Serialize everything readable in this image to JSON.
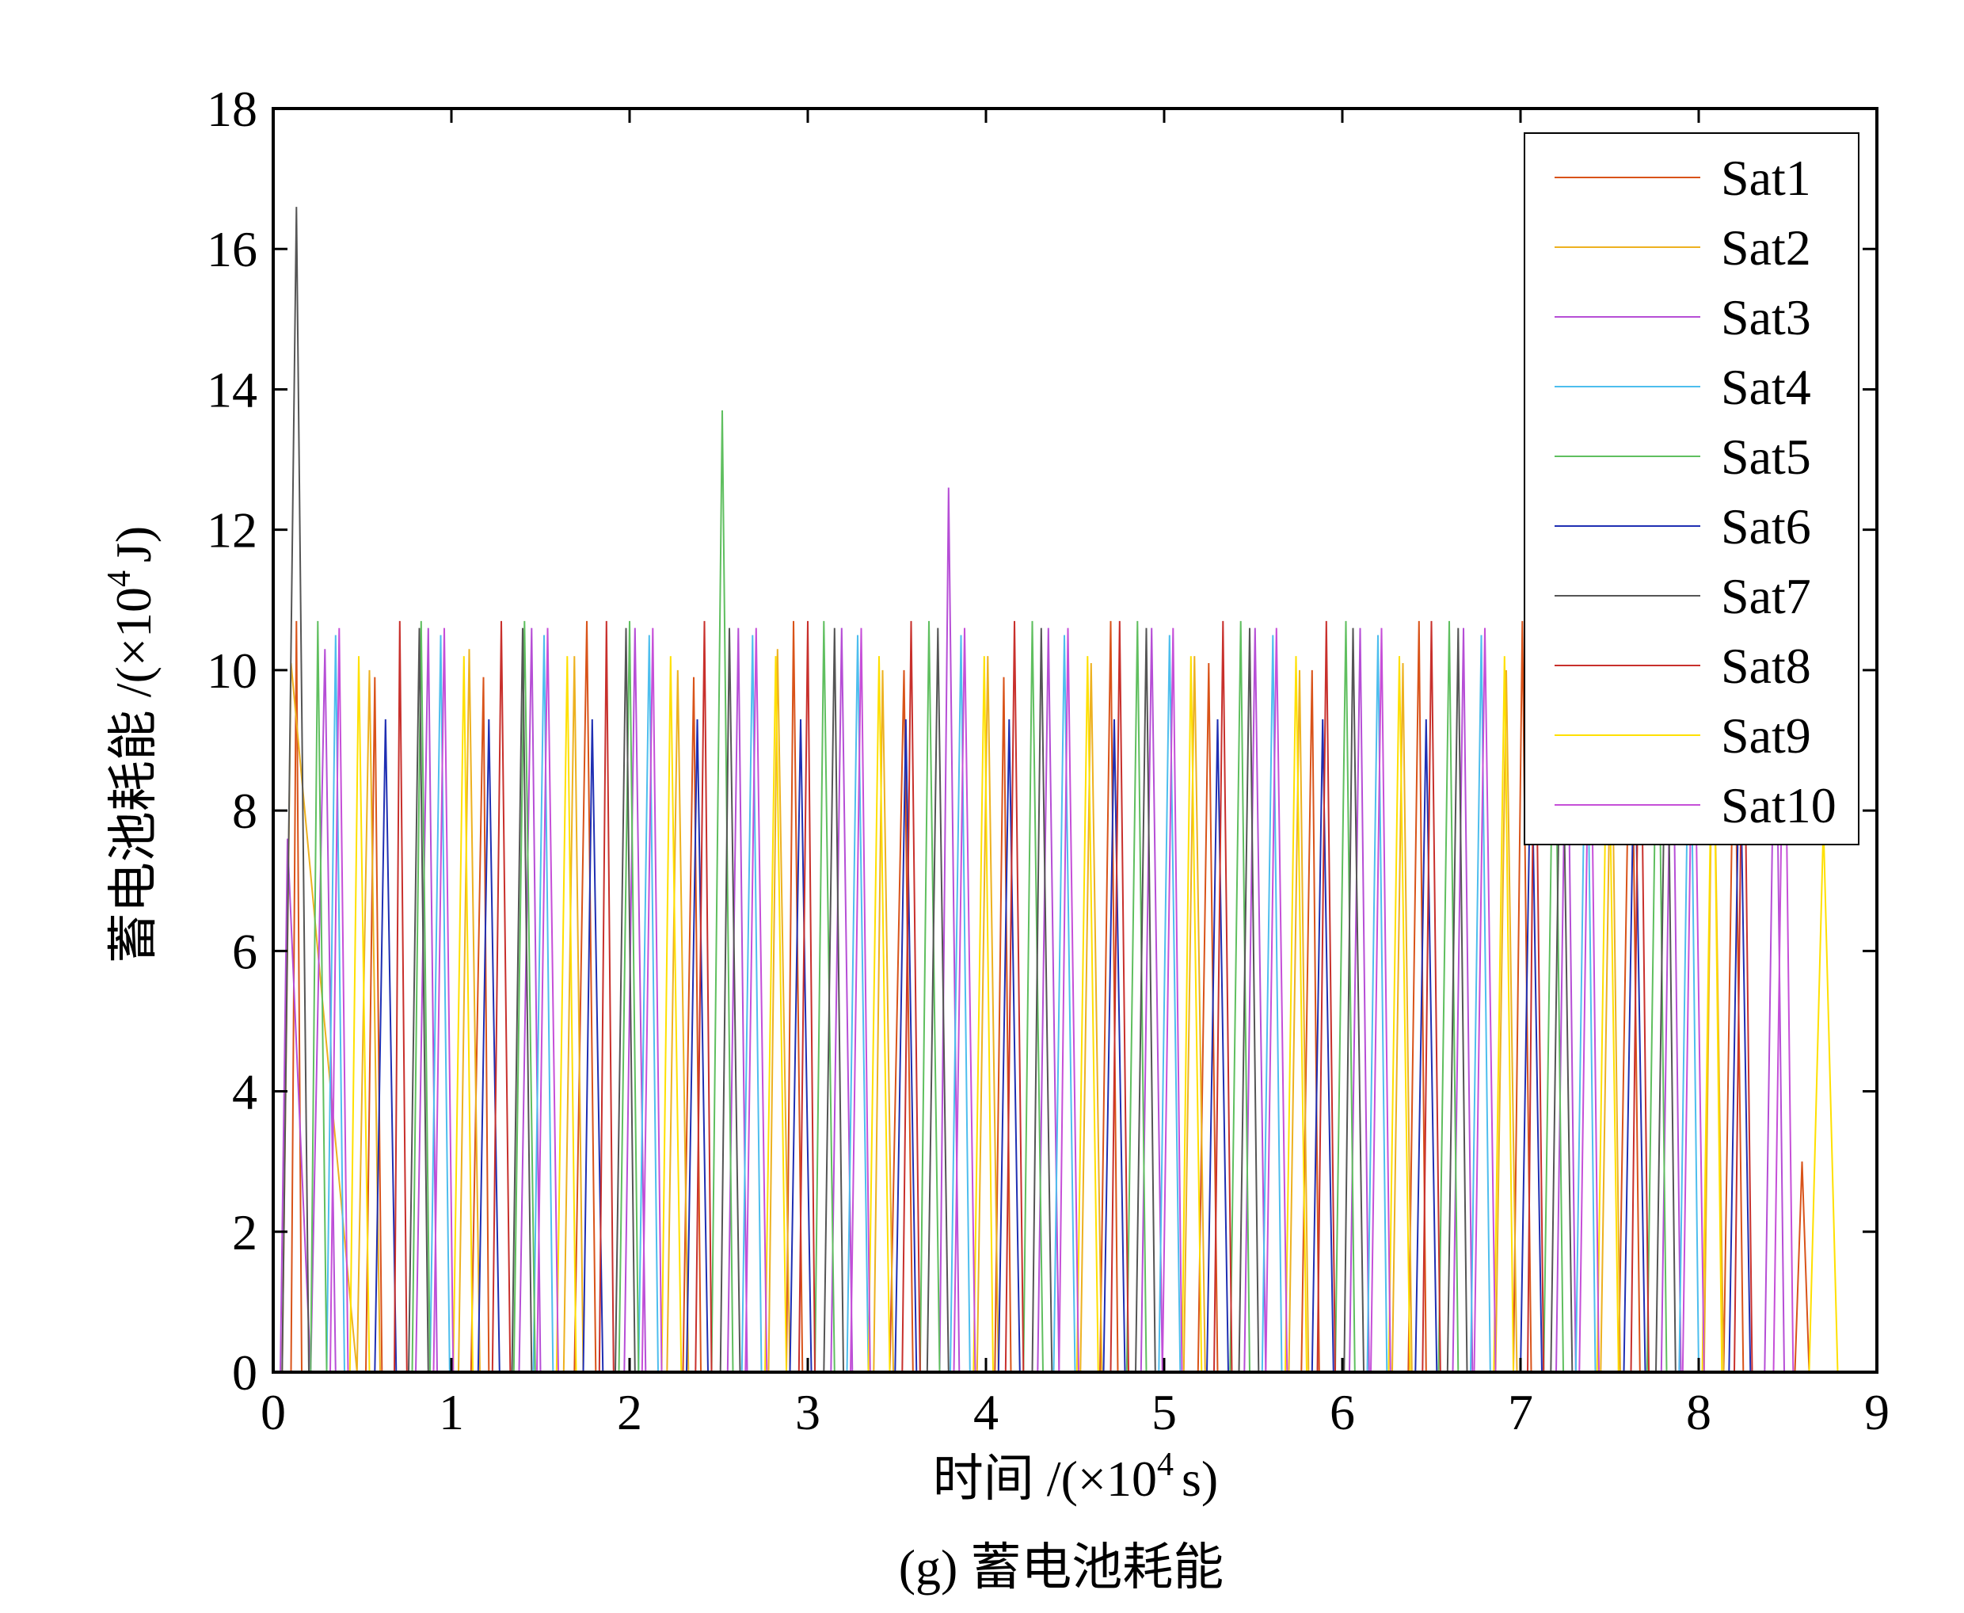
{
  "chart_data": {
    "type": "line",
    "caption": "(g) 蓄电池耗能",
    "xlabel": "时间 /(×10⁴ s)",
    "xlabel_main": "时间 /(×10",
    "xlabel_sup": "4",
    "xlabel_tail": "s)",
    "ylabel_main": "蓄电池耗能 /(×10",
    "ylabel_sup": "4",
    "ylabel_tail": "J)",
    "xlim": [
      0,
      9
    ],
    "ylim": [
      0,
      18
    ],
    "xticks": [
      "0",
      "1",
      "2",
      "3",
      "4",
      "5",
      "6",
      "7",
      "8",
      "9"
    ],
    "yticks": [
      "0",
      "2",
      "4",
      "6",
      "8",
      "10",
      "12",
      "14",
      "16",
      "18"
    ],
    "grid": false,
    "legend_position": "top-right",
    "series": [
      {
        "name": "Sat1",
        "color": "#d95319",
        "x": [
          0,
          0.1,
          0.13,
          0.16,
          0.52,
          0.57,
          0.61,
          1.11,
          1.18,
          1.21,
          1.69,
          1.76,
          1.81,
          2.3,
          2.36,
          2.4,
          2.88,
          2.92,
          2.97,
          3.46,
          3.54,
          3.59,
          4.05,
          4.1,
          4.14,
          4.64,
          4.7,
          4.74,
          5.19,
          5.25,
          5.3,
          5.77,
          5.83,
          5.87,
          6.37,
          6.43,
          6.47,
          6.96,
          7.01,
          7.06,
          7.55,
          7.62,
          7.67,
          8.14,
          8.2,
          8.25,
          8.54,
          8.58,
          8.62
        ],
        "y": [
          0,
          0,
          10.7,
          0,
          0,
          9.9,
          0,
          0,
          9.9,
          0,
          0,
          10.7,
          0,
          0,
          9.9,
          0,
          0,
          10.7,
          0,
          0,
          10.0,
          0,
          0,
          9.9,
          0,
          0,
          10.7,
          0,
          0,
          10.1,
          0,
          0,
          10.0,
          0,
          0,
          10.7,
          0,
          0,
          10.7,
          0,
          0,
          10.7,
          0,
          0,
          10.0,
          0,
          0,
          3.0,
          0
        ]
      },
      {
        "name": "Sat2",
        "color": "#edb120",
        "x": [
          0,
          0.05,
          0.1,
          0.47,
          0.54,
          0.6,
          1.04,
          1.1,
          1.16,
          1.63,
          1.69,
          1.74,
          2.21,
          2.27,
          2.33,
          2.78,
          2.83,
          2.9,
          3.37,
          3.42,
          3.48,
          3.95,
          4.01,
          4.07,
          4.53,
          4.59,
          4.65,
          5.11,
          5.17,
          5.23,
          5.7,
          5.76,
          5.81,
          6.28,
          6.34,
          6.39,
          6.86,
          6.92,
          6.98,
          7.45,
          7.51,
          7.56,
          8.03,
          8.08,
          8.14
        ],
        "y": [
          0,
          0,
          10.1,
          0,
          10.0,
          0,
          0,
          10.3,
          0,
          0,
          10.2,
          0,
          0,
          10.0,
          0,
          0,
          10.3,
          0,
          0,
          10.0,
          0,
          0,
          10.2,
          0,
          0,
          10.1,
          0,
          0,
          10.2,
          0,
          0,
          10.0,
          0,
          0,
          10.1,
          0,
          0,
          10.0,
          0,
          0,
          9.8,
          0,
          0,
          10.0,
          0
        ]
      },
      {
        "name": "Sat3",
        "color": "#b64ed6",
        "x": [
          0,
          0.04,
          0.08,
          0.21,
          0.29,
          0.35,
          0.8,
          0.87,
          0.92,
          1.38,
          1.45,
          1.5,
          1.97,
          2.03,
          2.09,
          2.55,
          2.61,
          2.66,
          3.13,
          3.19,
          3.25,
          3.74,
          3.79,
          3.85,
          4.29,
          4.35,
          4.41,
          4.87,
          4.93,
          4.99,
          5.45,
          5.51,
          5.57,
          6.04,
          6.1,
          6.15,
          6.62,
          6.68,
          6.73,
          7.2,
          7.26,
          7.31,
          7.79,
          7.85,
          7.9,
          8.37,
          8.43,
          8.48
        ],
        "y": [
          0,
          0,
          7.6,
          0,
          10.3,
          0,
          0,
          10.6,
          0,
          0,
          10.6,
          0,
          0,
          10.6,
          0,
          0,
          10.6,
          0,
          0,
          10.6,
          0,
          0,
          12.6,
          0,
          0,
          10.6,
          0,
          0,
          10.6,
          0,
          0,
          10.6,
          0,
          0,
          10.6,
          0,
          0,
          10.6,
          0,
          0,
          10.6,
          0,
          0,
          10.6,
          0,
          0,
          10.6,
          0
        ]
      },
      {
        "name": "Sat4",
        "color": "#4dbeee",
        "x": [
          0.3,
          0.35,
          0.4,
          0.88,
          0.94,
          0.99,
          1.46,
          1.52,
          1.57,
          2.05,
          2.11,
          2.16,
          2.63,
          2.69,
          2.74,
          3.22,
          3.28,
          3.34,
          3.8,
          3.86,
          3.91,
          4.38,
          4.44,
          4.5,
          4.97,
          5.03,
          5.09,
          5.55,
          5.61,
          5.66,
          6.14,
          6.2,
          6.25,
          6.72,
          6.78,
          6.83,
          7.31,
          7.37,
          7.42,
          7.89,
          7.95,
          8.0
        ],
        "y": [
          0,
          10.5,
          0,
          0,
          10.5,
          0,
          0,
          10.5,
          0,
          0,
          10.5,
          0,
          0,
          10.5,
          0,
          0,
          10.5,
          0,
          0,
          10.5,
          0,
          0,
          10.5,
          0,
          0,
          10.5,
          0,
          0,
          10.5,
          0,
          0,
          10.5,
          0,
          0,
          10.5,
          0,
          0,
          10.5,
          0,
          0,
          10.5,
          0
        ]
      },
      {
        "name": "Sat5",
        "color": "#5fbf5f",
        "x": [
          0.21,
          0.25,
          0.3,
          0.78,
          0.83,
          0.88,
          1.35,
          1.41,
          1.47,
          1.94,
          2.0,
          2.05,
          2.46,
          2.52,
          2.58,
          3.04,
          3.09,
          3.15,
          3.63,
          3.68,
          3.74,
          4.21,
          4.26,
          4.32,
          4.79,
          4.85,
          4.9,
          5.37,
          5.43,
          5.48,
          5.96,
          6.02,
          6.07,
          6.54,
          6.6,
          6.65,
          7.13,
          7.19,
          7.24,
          7.71,
          7.77,
          7.82
        ],
        "y": [
          0,
          10.7,
          0,
          0,
          10.7,
          0,
          0,
          10.7,
          0,
          0,
          10.7,
          0,
          0,
          13.7,
          0,
          0,
          10.7,
          0,
          0,
          10.7,
          0,
          0,
          10.7,
          0,
          0,
          10.7,
          0,
          0,
          10.7,
          0,
          0,
          10.7,
          0,
          0,
          10.7,
          0,
          0,
          10.7,
          0,
          0,
          10.7,
          0
        ]
      },
      {
        "name": "Sat6",
        "color": "#1f2fb3",
        "x": [
          0.57,
          0.63,
          0.69,
          1.15,
          1.21,
          1.27,
          1.74,
          1.79,
          1.85,
          2.32,
          2.38,
          2.44,
          2.9,
          2.96,
          3.02,
          3.49,
          3.55,
          3.61,
          4.07,
          4.13,
          4.19,
          4.66,
          4.72,
          4.78,
          5.24,
          5.3,
          5.36,
          5.83,
          5.89,
          5.95,
          6.41,
          6.47,
          6.53,
          7.0,
          7.06,
          7.12,
          7.58,
          7.64,
          7.7,
          8.17,
          8.23,
          8.29
        ],
        "y": [
          0,
          9.3,
          0,
          0,
          9.3,
          0,
          0,
          9.3,
          0,
          0,
          9.3,
          0,
          0,
          9.3,
          0,
          0,
          9.3,
          0,
          0,
          9.3,
          0,
          0,
          9.3,
          0,
          0,
          9.3,
          0,
          0,
          9.3,
          0,
          0,
          9.3,
          0,
          0,
          9.3,
          0,
          0,
          9.3,
          0,
          0,
          9.3,
          0
        ]
      },
      {
        "name": "Sat7",
        "color": "#555555",
        "x": [
          0.05,
          0.13,
          0.2,
          0.76,
          0.82,
          0.87,
          1.34,
          1.4,
          1.45,
          1.92,
          1.98,
          2.03,
          2.51,
          2.56,
          2.62,
          3.09,
          3.15,
          3.2,
          3.67,
          3.73,
          3.79,
          4.26,
          4.31,
          4.37,
          4.84,
          4.9,
          4.95,
          5.42,
          5.48,
          5.53,
          6.01,
          6.06,
          6.12,
          6.59,
          6.65,
          6.7,
          7.17,
          7.23,
          7.29,
          7.76,
          7.82,
          7.87
        ],
        "y": [
          0,
          16.6,
          0,
          0,
          10.6,
          0,
          0,
          10.6,
          0,
          0,
          10.6,
          0,
          0,
          10.6,
          0,
          0,
          10.6,
          0,
          0,
          10.6,
          0,
          0,
          10.6,
          0,
          0,
          10.6,
          0,
          0,
          10.6,
          0,
          0,
          10.6,
          0,
          0,
          10.6,
          0,
          0,
          10.6,
          0,
          0,
          10.6,
          0
        ]
      },
      {
        "name": "Sat8",
        "color": "#c8302c",
        "x": [
          0.68,
          0.71,
          0.75,
          1.23,
          1.28,
          1.33,
          1.83,
          1.87,
          1.91,
          2.37,
          2.42,
          2.46,
          2.95,
          3.0,
          3.04,
          3.53,
          3.58,
          3.63,
          4.11,
          4.16,
          4.21,
          4.7,
          4.75,
          4.8,
          5.28,
          5.33,
          5.38,
          5.86,
          5.91,
          5.96,
          6.45,
          6.5,
          6.55,
          7.04,
          7.08,
          7.13,
          7.62,
          7.67,
          7.72,
          8.2,
          8.25,
          8.3
        ],
        "y": [
          0,
          10.7,
          0,
          0,
          10.7,
          0,
          0,
          10.7,
          0,
          0,
          10.7,
          0,
          0,
          10.7,
          0,
          0,
          10.7,
          0,
          0,
          10.7,
          0,
          0,
          10.7,
          0,
          0,
          10.7,
          0,
          0,
          10.7,
          0,
          0,
          10.7,
          0,
          0,
          10.7,
          0,
          0,
          10.7,
          0,
          0,
          10.7,
          0
        ]
      },
      {
        "name": "Sat9",
        "color": "#ffe000",
        "x": [
          0.43,
          0.48,
          0.54,
          1.01,
          1.07,
          1.12,
          1.59,
          1.65,
          1.7,
          2.18,
          2.23,
          2.29,
          2.76,
          2.82,
          2.88,
          3.34,
          3.4,
          3.46,
          3.93,
          3.99,
          4.04,
          4.51,
          4.57,
          4.63,
          5.1,
          5.15,
          5.21,
          5.68,
          5.74,
          5.8,
          6.26,
          6.32,
          6.38,
          6.85,
          6.91,
          6.96,
          7.43,
          7.49,
          7.55,
          8.02,
          8.08,
          8.13,
          8.62,
          8.7,
          8.78
        ],
        "y": [
          0,
          10.2,
          0,
          0,
          10.2,
          0,
          0,
          10.2,
          0,
          0,
          10.2,
          0,
          0,
          10.2,
          0,
          0,
          10.2,
          0,
          0,
          10.2,
          0,
          0,
          10.2,
          0,
          0,
          10.2,
          0,
          0,
          10.2,
          0,
          0,
          10.2,
          0,
          0,
          10.2,
          0,
          0,
          10.2,
          0,
          0,
          10.2,
          0,
          0,
          7.8,
          0
        ]
      },
      {
        "name": "Sat10",
        "color": "#c64fd8",
        "x": [
          0.32,
          0.37,
          0.42,
          0.9,
          0.96,
          1.01,
          1.48,
          1.54,
          1.6,
          2.07,
          2.13,
          2.18,
          2.65,
          2.71,
          2.77,
          3.24,
          3.3,
          3.35,
          3.82,
          3.88,
          3.94,
          4.41,
          4.46,
          4.52,
          4.99,
          5.05,
          5.1,
          5.57,
          5.63,
          5.69,
          6.16,
          6.22,
          6.27,
          6.74,
          6.8,
          6.86,
          7.33,
          7.39,
          7.44,
          7.91,
          7.97,
          8.03,
          8.42,
          8.48,
          8.53
        ],
        "y": [
          0,
          10.6,
          0,
          0,
          10.6,
          0,
          0,
          10.6,
          0,
          0,
          10.6,
          0,
          0,
          10.6,
          0,
          0,
          10.6,
          0,
          0,
          10.6,
          0,
          0,
          10.6,
          0,
          0,
          10.6,
          0,
          0,
          10.6,
          0,
          0,
          10.6,
          0,
          0,
          10.6,
          0,
          0,
          10.6,
          0,
          0,
          10.6,
          0,
          0,
          10.6,
          0
        ]
      }
    ]
  }
}
